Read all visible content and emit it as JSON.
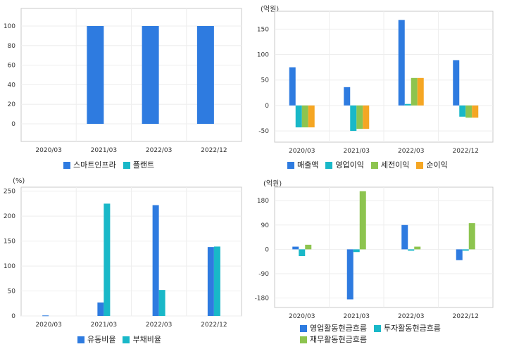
{
  "chart_data": [
    {
      "type": "bar",
      "unit": "",
      "categories": [
        "2020/03",
        "2021/03",
        "2022/03",
        "2022/12"
      ],
      "series": [
        {
          "name": "스마트인프라",
          "color": "#2e7be0",
          "values": [
            0,
            100,
            100,
            100
          ]
        },
        {
          "name": "플랜트",
          "color": "#19b8c8",
          "values": [
            0,
            0,
            0,
            0
          ]
        }
      ],
      "yticks": [
        0,
        20,
        40,
        60,
        80,
        100
      ],
      "ylim": [
        -18,
        118
      ],
      "grid": true,
      "legend": "bottom"
    },
    {
      "type": "bar",
      "unit": "(억원)",
      "categories": [
        "2020/03",
        "2021/03",
        "2022/03",
        "2022/12"
      ],
      "series": [
        {
          "name": "매출액",
          "color": "#2e7be0",
          "values": [
            75,
            36,
            168,
            89
          ]
        },
        {
          "name": "영업이익",
          "color": "#19b8c8",
          "values": [
            -43,
            -50,
            3,
            -22
          ]
        },
        {
          "name": "세전이익",
          "color": "#8dc44f",
          "values": [
            -43,
            -46,
            54,
            -24
          ]
        },
        {
          "name": "순이익",
          "color": "#f5a623",
          "values": [
            -43,
            -46,
            54,
            -24
          ]
        }
      ],
      "yticks": [
        -50,
        0,
        50,
        100,
        150
      ],
      "ylim": [
        -72,
        185
      ],
      "grid": true,
      "legend": "bottom"
    },
    {
      "type": "bar",
      "unit": "(%)",
      "categories": [
        "2020/03",
        "2021/03",
        "2022/03",
        "2022/12"
      ],
      "series": [
        {
          "name": "유동비율",
          "color": "#2e7be0",
          "values": [
            1,
            27,
            222,
            138
          ]
        },
        {
          "name": "부채비율",
          "color": "#19b8c8",
          "values": [
            0,
            225,
            52,
            139
          ]
        }
      ],
      "yticks": [
        0,
        50,
        100,
        150,
        200,
        250
      ],
      "ylim": [
        0,
        258
      ],
      "grid": true,
      "legend": "bottom"
    },
    {
      "type": "bar",
      "unit": "(억원)",
      "categories": [
        "2020/03",
        "2021/03",
        "2022/03",
        "2022/12"
      ],
      "series": [
        {
          "name": "영업활동현금흐름",
          "color": "#2e7be0",
          "values": [
            10,
            -185,
            90,
            -40
          ]
        },
        {
          "name": "투자활동현금흐름",
          "color": "#19b8c8",
          "values": [
            -25,
            -10,
            -5,
            -5
          ]
        },
        {
          "name": "재무활동현금흐름",
          "color": "#8dc44f",
          "values": [
            17,
            215,
            10,
            97
          ]
        }
      ],
      "yticks": [
        -180,
        -90,
        0,
        90,
        180
      ],
      "ylim": [
        -215,
        230
      ],
      "grid": true,
      "legend": "bottom"
    }
  ]
}
